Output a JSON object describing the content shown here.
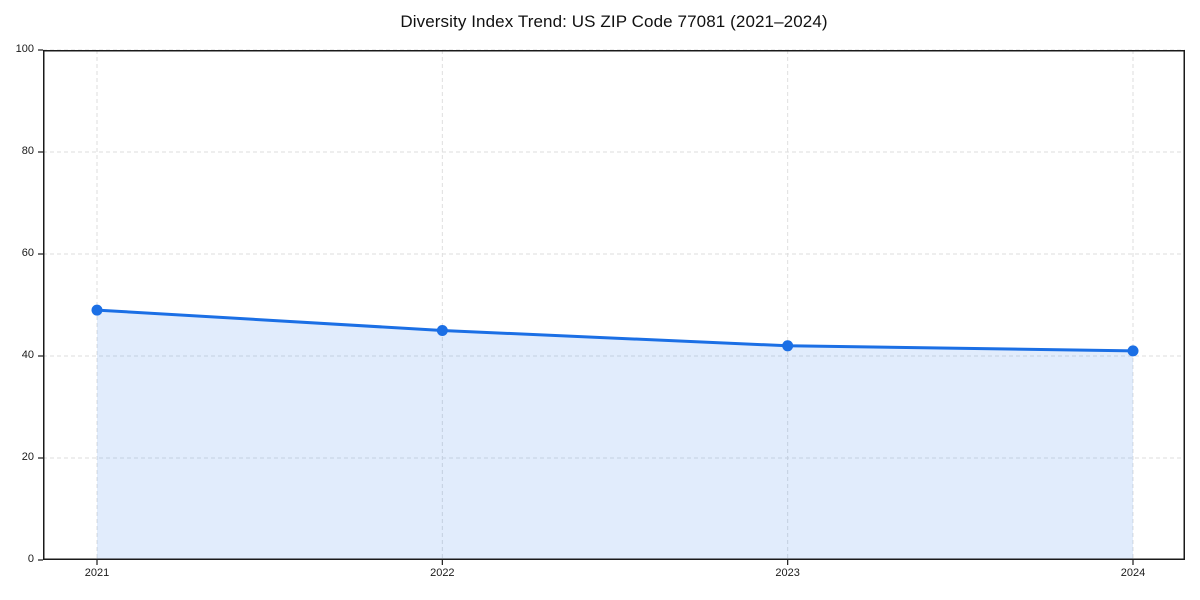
{
  "chart_data": {
    "type": "area",
    "title": "Diversity Index Trend: US ZIP Code 77081 (2021–2024)",
    "categories": [
      "2021",
      "2022",
      "2023",
      "2024"
    ],
    "series": [
      {
        "name": "Diversity Index",
        "values": [
          49,
          45,
          42,
          41
        ]
      }
    ],
    "xlabel": "",
    "ylabel": "",
    "ylim": [
      0,
      100
    ],
    "yticks": [
      0,
      20,
      40,
      60,
      80,
      100
    ],
    "grid": true,
    "grid_style": "dashed",
    "legend": "none",
    "marker": "circle",
    "colors": {
      "line": "#1b6fe5",
      "marker": "#1b6fe5",
      "fill": "rgba(27, 111, 229, 0.13)",
      "grid": "#dedede",
      "axis": "#1a1a1a",
      "tick_text": "#1a1a1a",
      "title_text": "#111111",
      "background": "#ffffff"
    }
  }
}
